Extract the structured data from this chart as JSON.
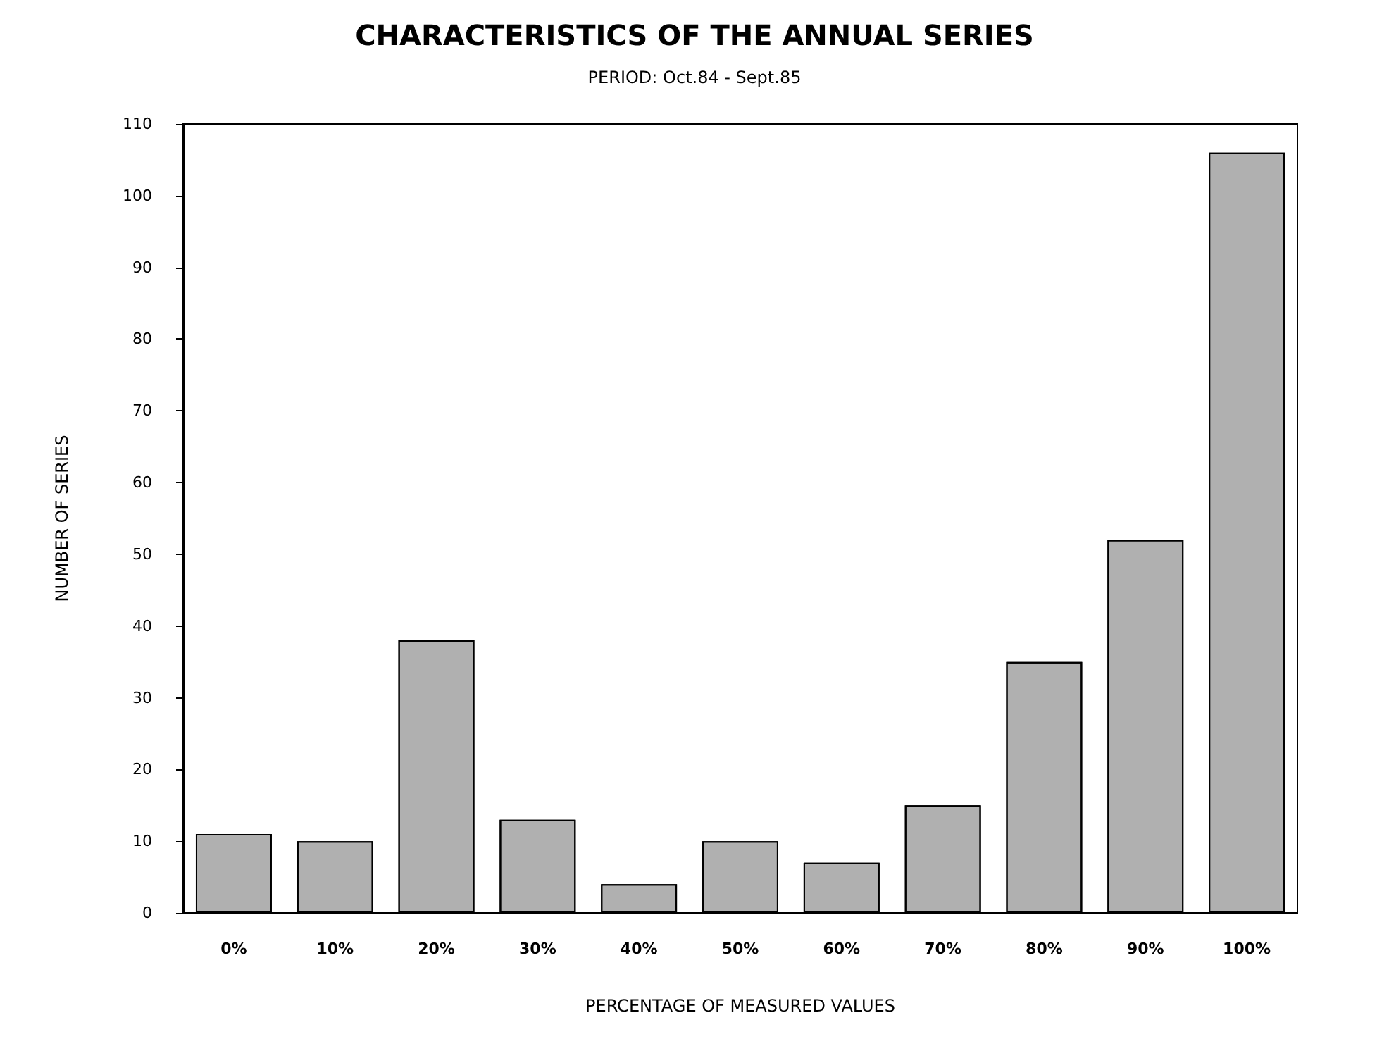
{
  "chart_data": {
    "type": "bar",
    "title": "CHARACTERISTICS OF THE ANNUAL SERIES",
    "subtitle": "PERIOD: Oct.84 - Sept.85",
    "xlabel": "PERCENTAGE OF MEASURED VALUES",
    "ylabel": "NUMBER OF SERIES",
    "categories": [
      "0%",
      "10%",
      "20%",
      "30%",
      "40%",
      "50%",
      "60%",
      "70%",
      "80%",
      "90%",
      "100%"
    ],
    "values": [
      11,
      10,
      38,
      13,
      4,
      10,
      7,
      15,
      35,
      52,
      106
    ],
    "color": "#b0b0b0",
    "ylim": [
      0,
      110
    ],
    "yticks": [
      0,
      10,
      20,
      30,
      40,
      50,
      60,
      70,
      80,
      90,
      100,
      110
    ],
    "grid": false
  }
}
